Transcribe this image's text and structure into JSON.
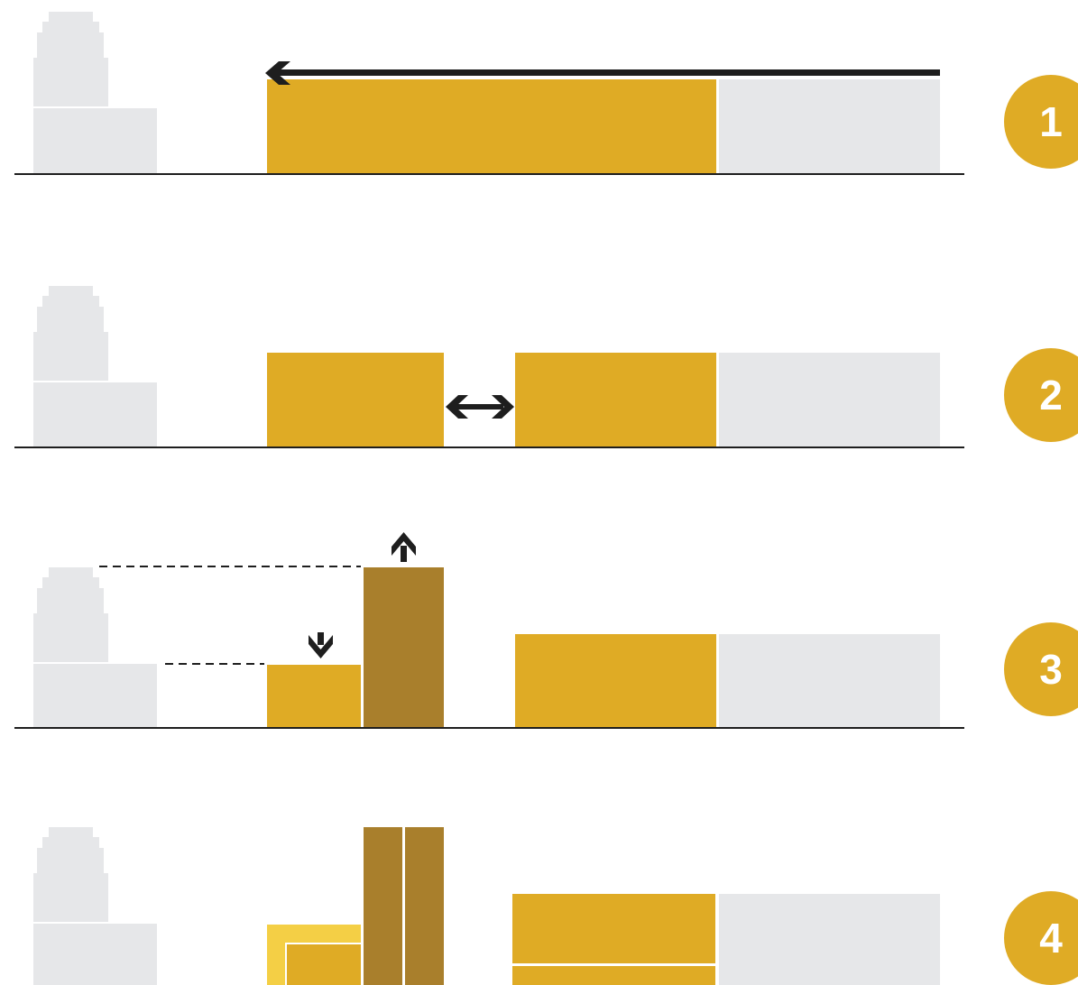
{
  "colors": {
    "background": "#ffffff",
    "existing_building": "#e6e7e9",
    "new_mass": "#dfab25",
    "tower_mass": "#a97f2c",
    "light_mass": "#f4cf45",
    "arrow": "#1e1e1e",
    "ground_line": "#1e1e1e",
    "badge": "#dfab25",
    "badge_text": "#ffffff"
  },
  "steps": [
    {
      "number": "1"
    },
    {
      "number": "2"
    },
    {
      "number": "3"
    },
    {
      "number": "4"
    }
  ]
}
